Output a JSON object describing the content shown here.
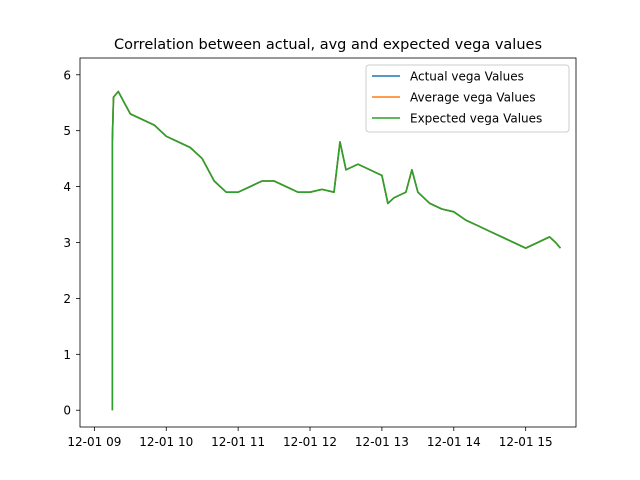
{
  "chart_data": {
    "type": "line",
    "title": "Correlation between actual, avg and expected vega values",
    "xlabel": "",
    "ylabel": "",
    "x_ticks": [
      "12-01 09",
      "12-01 10",
      "12-01 11",
      "12-01 12",
      "12-01 13",
      "12-01 14",
      "12-01 15"
    ],
    "y_ticks": [
      "0",
      "1",
      "2",
      "3",
      "4",
      "5",
      "6"
    ],
    "xlim": [
      "12-01 08:48",
      "12-01 15:42"
    ],
    "ylim": [
      -0.3,
      6.3
    ],
    "grid": false,
    "legend_position": "top-right",
    "x": [
      "12-01 09:15",
      "12-01 09:15",
      "12-01 09:16",
      "12-01 09:20",
      "12-01 09:25",
      "12-01 09:30",
      "12-01 09:40",
      "12-01 09:50",
      "12-01 10:00",
      "12-01 10:10",
      "12-01 10:20",
      "12-01 10:30",
      "12-01 10:40",
      "12-01 10:50",
      "12-01 11:00",
      "12-01 11:10",
      "12-01 11:20",
      "12-01 11:30",
      "12-01 11:40",
      "12-01 11:50",
      "12-01 12:00",
      "12-01 12:10",
      "12-01 12:20",
      "12-01 12:25",
      "12-01 12:30",
      "12-01 12:40",
      "12-01 12:50",
      "12-01 13:00",
      "12-01 13:05",
      "12-01 13:10",
      "12-01 13:20",
      "12-01 13:25",
      "12-01 13:30",
      "12-01 13:40",
      "12-01 13:50",
      "12-01 14:00",
      "12-01 14:10",
      "12-01 14:20",
      "12-01 14:30",
      "12-01 14:40",
      "12-01 14:50",
      "12-01 15:00",
      "12-01 15:10",
      "12-01 15:20",
      "12-01 15:25",
      "12-01 15:29"
    ],
    "series": [
      {
        "name": "Actual vega Values",
        "color": "#1f77b4",
        "values": [
          0.0,
          4.8,
          5.6,
          5.7,
          5.5,
          5.3,
          5.2,
          5.1,
          4.9,
          4.8,
          4.7,
          4.5,
          4.1,
          3.9,
          3.9,
          4.0,
          4.1,
          4.1,
          4.0,
          3.9,
          3.9,
          3.95,
          3.9,
          4.8,
          4.3,
          4.4,
          4.3,
          4.2,
          3.7,
          3.8,
          3.9,
          4.3,
          3.9,
          3.7,
          3.6,
          3.55,
          3.4,
          3.3,
          3.2,
          3.1,
          3.0,
          2.9,
          3.0,
          3.1,
          3.0,
          2.9
        ]
      },
      {
        "name": "Average vega Values",
        "color": "#ff7f0e",
        "values": [
          0.0,
          4.8,
          5.6,
          5.7,
          5.5,
          5.3,
          5.2,
          5.1,
          4.9,
          4.8,
          4.7,
          4.5,
          4.1,
          3.9,
          3.9,
          4.0,
          4.1,
          4.1,
          4.0,
          3.9,
          3.9,
          3.95,
          3.9,
          4.8,
          4.3,
          4.4,
          4.3,
          4.2,
          3.7,
          3.8,
          3.9,
          4.3,
          3.9,
          3.7,
          3.6,
          3.55,
          3.4,
          3.3,
          3.2,
          3.1,
          3.0,
          2.9,
          3.0,
          3.1,
          3.0,
          2.9
        ]
      },
      {
        "name": "Expected vega Values",
        "color": "#2ca02c",
        "values": [
          0.0,
          4.8,
          5.6,
          5.7,
          5.5,
          5.3,
          5.2,
          5.1,
          4.9,
          4.8,
          4.7,
          4.5,
          4.1,
          3.9,
          3.9,
          4.0,
          4.1,
          4.1,
          4.0,
          3.9,
          3.9,
          3.95,
          3.9,
          4.8,
          4.3,
          4.4,
          4.3,
          4.2,
          3.7,
          3.8,
          3.9,
          4.3,
          3.9,
          3.7,
          3.6,
          3.55,
          3.4,
          3.3,
          3.2,
          3.1,
          3.0,
          2.9,
          3.0,
          3.1,
          3.0,
          2.9
        ]
      }
    ]
  }
}
